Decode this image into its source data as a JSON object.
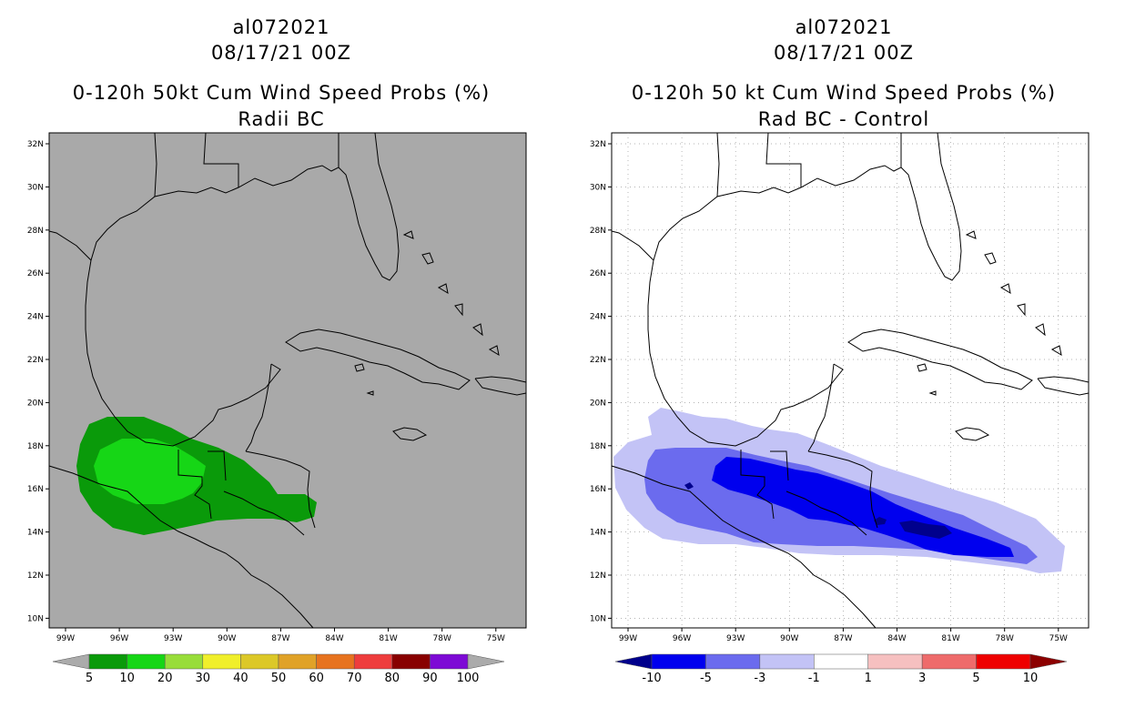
{
  "panels": [
    {
      "storm_id": "al072021",
      "datetime": "08/17/21 00Z",
      "product": "0-120h 50kt Cum Wind Speed Probs (%)",
      "subtitle": "Radii BC",
      "background_color": "#a9a9a9",
      "colorbar": {
        "labels": [
          "5",
          "10",
          "20",
          "30",
          "40",
          "50",
          "60",
          "70",
          "80",
          "90",
          "100"
        ],
        "colors": [
          "#ababab",
          "#0a9a0a",
          "#16d616",
          "#98dd3a",
          "#f0ef2b",
          "#dcc828",
          "#e0a228",
          "#e7731f",
          "#ee3d3d",
          "#880000",
          "#7d0ad5",
          "#ababab"
        ]
      }
    },
    {
      "storm_id": "al072021",
      "datetime": "08/17/21 00Z",
      "product": "0-120h 50 kt Cum Wind Speed Probs (%)",
      "subtitle": "Rad BC - Control",
      "background_color": "#ffffff",
      "colorbar": {
        "labels": [
          "-10",
          "-5",
          "-3",
          "-1",
          "1",
          "3",
          "5",
          "10"
        ],
        "colors": [
          "#00008c",
          "#0000ee",
          "#6b6bee",
          "#c3c3f6",
          "#ffffff",
          "#f6c0c0",
          "#ee6b6b",
          "#ee0000",
          "#8c0000"
        ]
      }
    }
  ],
  "axes": {
    "lat_labels": [
      "32N",
      "30N",
      "28N",
      "26N",
      "24N",
      "22N",
      "20N",
      "18N",
      "16N",
      "14N",
      "12N",
      "10N"
    ],
    "lon_labels": [
      "99W",
      "96W",
      "93W",
      "90W",
      "87W",
      "84W",
      "81W",
      "78W",
      "75W"
    ]
  }
}
